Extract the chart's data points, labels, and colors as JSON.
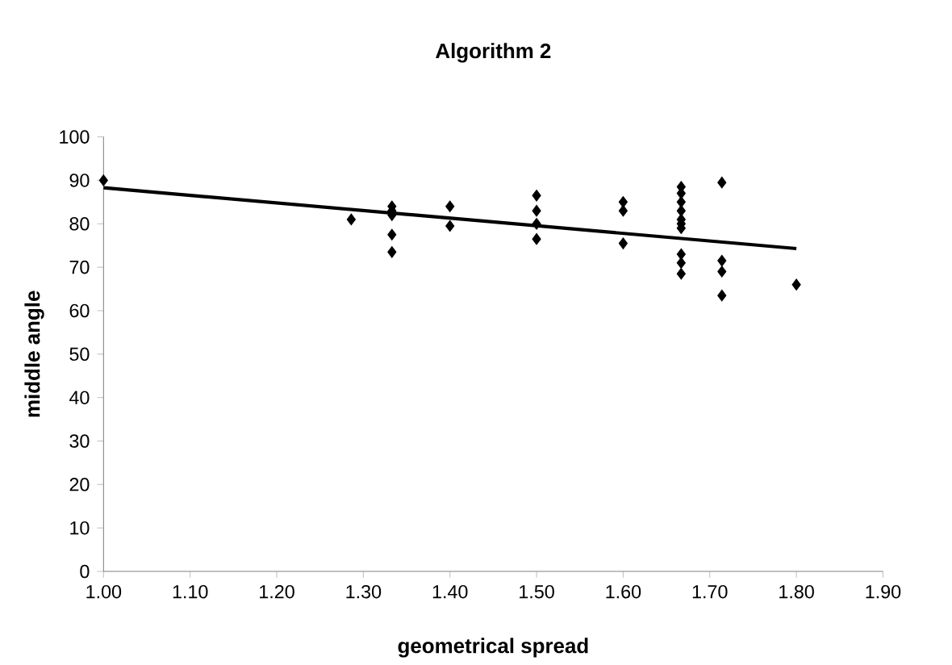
{
  "chart_data": {
    "type": "scatter",
    "title": "Algorithm 2",
    "xlabel": "geometrical spread",
    "ylabel": "middle angle",
    "marker": "diamond",
    "grid": false,
    "xlim": [
      1.0,
      1.9
    ],
    "ylim": [
      0,
      100
    ],
    "xticks": [
      {
        "value": 1.0,
        "label": "1.00"
      },
      {
        "value": 1.1,
        "label": "1.10"
      },
      {
        "value": 1.2,
        "label": "1.20"
      },
      {
        "value": 1.3,
        "label": "1.30"
      },
      {
        "value": 1.4,
        "label": "1.40"
      },
      {
        "value": 1.5,
        "label": "1.50"
      },
      {
        "value": 1.6,
        "label": "1.60"
      },
      {
        "value": 1.7,
        "label": "1.70"
      },
      {
        "value": 1.8,
        "label": "1.80"
      },
      {
        "value": 1.9,
        "label": "1.90"
      }
    ],
    "yticks": [
      0,
      10,
      20,
      30,
      40,
      50,
      60,
      70,
      80,
      90,
      100
    ],
    "series": [
      {
        "color": "#000000",
        "x": [
          1.0,
          1.286,
          1.333,
          1.333,
          1.333,
          1.333,
          1.333,
          1.4,
          1.4,
          1.5,
          1.5,
          1.5,
          1.5,
          1.6,
          1.6,
          1.6,
          1.667,
          1.667,
          1.667,
          1.667,
          1.667,
          1.667,
          1.667,
          1.667,
          1.667,
          1.667,
          1.714,
          1.714,
          1.714,
          1.714,
          1.8
        ],
        "values": [
          90,
          81,
          84,
          83,
          82,
          77.5,
          73.5,
          84,
          79.5,
          86.5,
          83,
          80,
          76.5,
          85,
          83,
          75.5,
          88.5,
          87,
          85,
          83,
          81,
          80,
          79,
          73,
          71,
          68.5,
          89.5,
          71.5,
          69,
          63.5,
          66
        ]
      },
      {
        "type": "line",
        "marker": "none",
        "color": "#000000",
        "x": [
          1.0,
          1.8
        ],
        "values": [
          88.3,
          74.3
        ]
      }
    ]
  }
}
